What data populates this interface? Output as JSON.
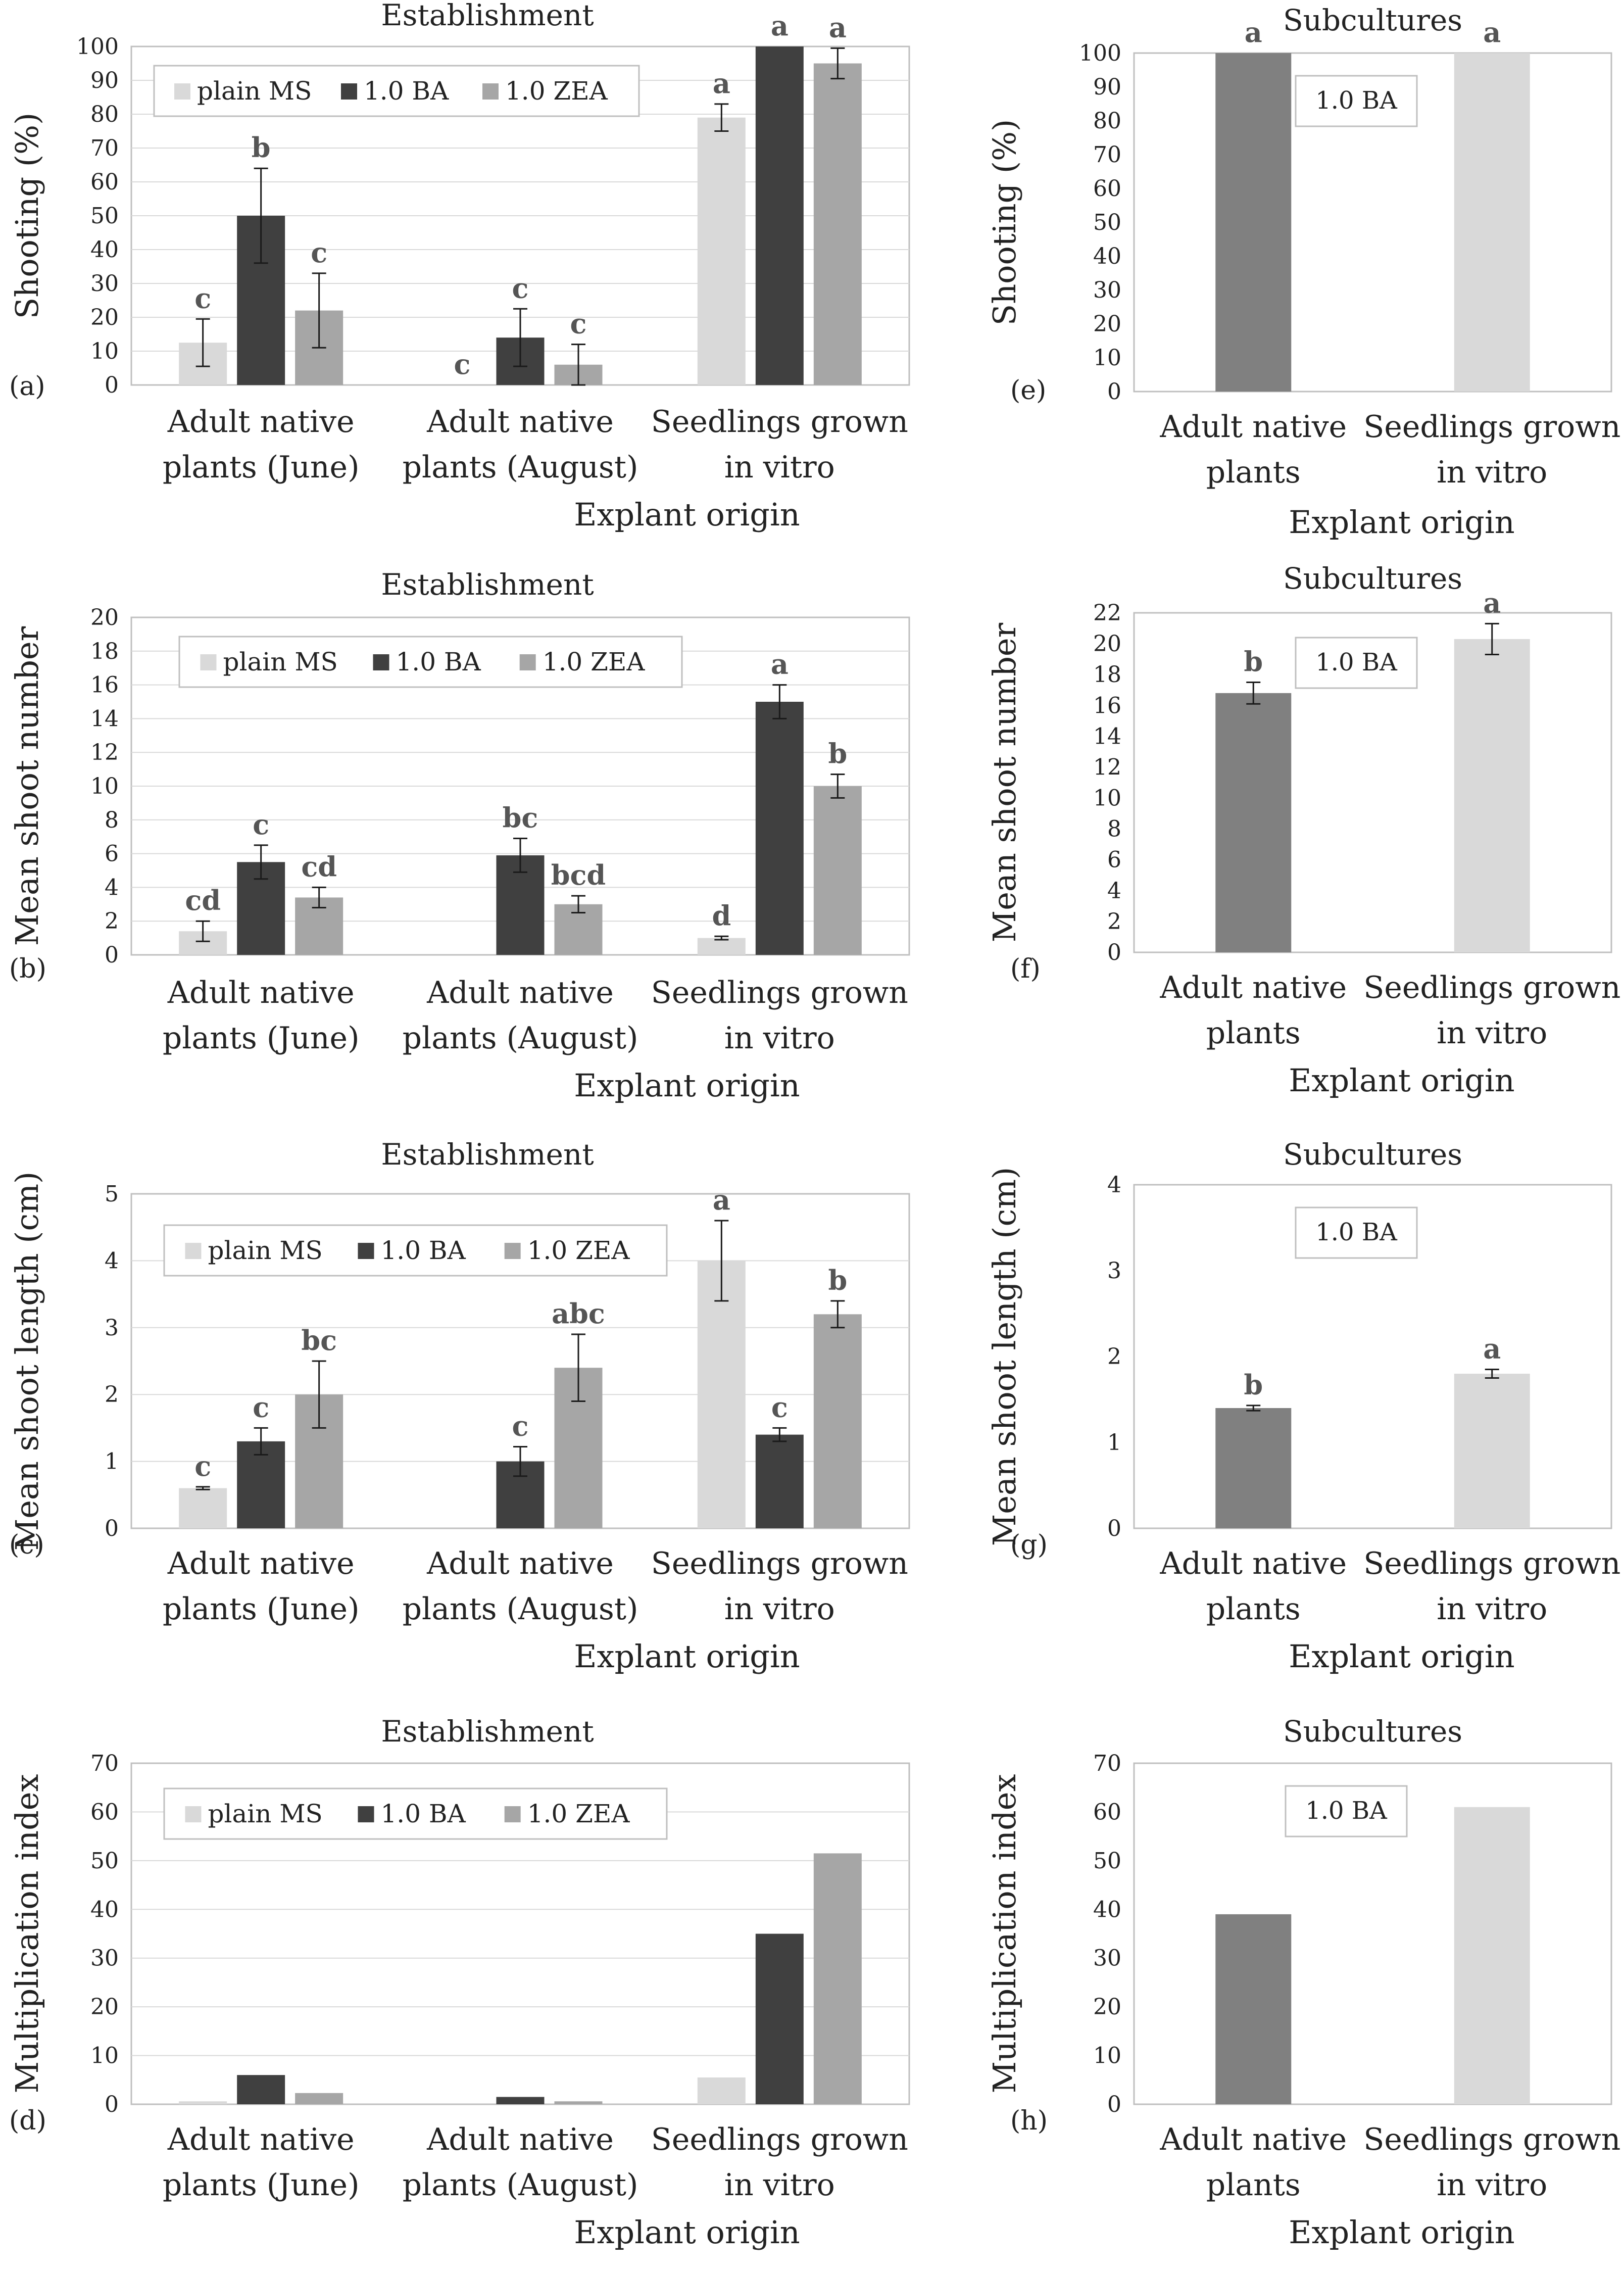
{
  "legend_labels": [
    "plain MS",
    "1.0 BA",
    "1.0 ZEA"
  ],
  "colors": {
    "plain_ms": "#d9d9d9",
    "ba": "#404040",
    "zea": "#a6a6a6",
    "sub_adult": "#808080",
    "sub_seed": "#d9d9d9",
    "axis": "#bfbfbf",
    "grid": "#d9d9d9",
    "error": "#1a1a1a"
  },
  "chart_data": [
    {
      "id": "a",
      "panel_label": "(a)",
      "type": "bar",
      "title": "Establishment",
      "xlabel": "Explant origin",
      "ylabel": "Shooting (%)",
      "ylim": [
        0,
        100
      ],
      "yticks": [
        0,
        10,
        20,
        30,
        40,
        50,
        60,
        70,
        80,
        90,
        100
      ],
      "grid": true,
      "categories": [
        [
          "Adult native",
          "plants (June)"
        ],
        [
          "Adult native",
          "plants (August)"
        ],
        [
          "Seedlings grown",
          "in vitro"
        ]
      ],
      "series": [
        {
          "name": "plain MS",
          "color_key": "plain_ms",
          "values": [
            12.5,
            0,
            79
          ],
          "errors": [
            7,
            0,
            4
          ],
          "letters": [
            "c",
            "c",
            "a"
          ]
        },
        {
          "name": "1.0 BA",
          "color_key": "ba",
          "values": [
            50,
            14,
            100
          ],
          "errors": [
            14,
            8.5,
            0
          ],
          "letters": [
            "b",
            "c",
            "a"
          ]
        },
        {
          "name": "1.0 ZEA",
          "color_key": "zea",
          "values": [
            22,
            6,
            95
          ],
          "errors": [
            11,
            6,
            4.5
          ],
          "letters": [
            "c",
            "c",
            "a"
          ]
        }
      ],
      "legend": true,
      "legend_position": "top-left",
      "box_label": ""
    },
    {
      "id": "b",
      "panel_label": "(b)",
      "type": "bar",
      "title": "Establishment",
      "xlabel": "Explant origin",
      "ylabel": "Mean shoot number",
      "ylim": [
        0,
        20
      ],
      "yticks": [
        0,
        2,
        4,
        6,
        8,
        10,
        12,
        14,
        16,
        18,
        20
      ],
      "grid": true,
      "categories": [
        [
          "Adult native",
          "plants (June)"
        ],
        [
          "Adult native",
          "plants (August)"
        ],
        [
          "Seedlings grown",
          "in vitro"
        ]
      ],
      "series": [
        {
          "name": "plain MS",
          "color_key": "plain_ms",
          "values": [
            1.4,
            0,
            1.0
          ],
          "errors": [
            0.6,
            0,
            0.1
          ],
          "letters": [
            "cd",
            "",
            "d"
          ]
        },
        {
          "name": "1.0 BA",
          "color_key": "ba",
          "values": [
            5.5,
            5.9,
            15.0
          ],
          "errors": [
            1.0,
            1.0,
            1.0
          ],
          "letters": [
            "c",
            "bc",
            "a"
          ]
        },
        {
          "name": "1.0 ZEA",
          "color_key": "zea",
          "values": [
            3.4,
            3.0,
            10.0
          ],
          "errors": [
            0.6,
            0.5,
            0.7
          ],
          "letters": [
            "cd",
            "bcd",
            "b"
          ]
        }
      ],
      "legend": true,
      "legend_position": "top-left",
      "box_label": ""
    },
    {
      "id": "c",
      "panel_label": "(c)",
      "type": "bar",
      "title": "Establishment",
      "xlabel": "Explant origin",
      "ylabel": "Mean shoot length (cm)",
      "ylim": [
        0,
        5
      ],
      "yticks": [
        0,
        1,
        2,
        3,
        4,
        5
      ],
      "grid": true,
      "categories": [
        [
          "Adult native",
          "plants (June)"
        ],
        [
          "Adult native",
          "plants (August)"
        ],
        [
          "Seedlings grown",
          "in vitro"
        ]
      ],
      "series": [
        {
          "name": "plain MS",
          "color_key": "plain_ms",
          "values": [
            0.6,
            0,
            4.0
          ],
          "errors": [
            0.02,
            0,
            0.6
          ],
          "letters": [
            "c",
            "",
            "a"
          ]
        },
        {
          "name": "1.0 BA",
          "color_key": "ba",
          "values": [
            1.3,
            1.0,
            1.4
          ],
          "errors": [
            0.2,
            0.22,
            0.1
          ],
          "letters": [
            "c",
            "c",
            "c"
          ]
        },
        {
          "name": "1.0 ZEA",
          "color_key": "zea",
          "values": [
            2.0,
            2.4,
            3.2
          ],
          "errors": [
            0.5,
            0.5,
            0.2
          ],
          "letters": [
            "bc",
            "abc",
            "b"
          ]
        }
      ],
      "legend": true,
      "legend_position": "top-left",
      "box_label": ""
    },
    {
      "id": "d",
      "panel_label": "(d)",
      "type": "bar",
      "title": "Establishment",
      "xlabel": "Explant origin",
      "ylabel": "Multiplication index",
      "ylim": [
        0,
        70
      ],
      "yticks": [
        0,
        10,
        20,
        30,
        40,
        50,
        60,
        70
      ],
      "grid": true,
      "categories": [
        [
          "Adult native",
          "plants (June)"
        ],
        [
          "Adult native",
          "plants (August)"
        ],
        [
          "Seedlings grown",
          "in vitro"
        ]
      ],
      "series": [
        {
          "name": "plain MS",
          "color_key": "plain_ms",
          "values": [
            0.6,
            0,
            5.5
          ],
          "errors": [
            0,
            0,
            0
          ],
          "letters": [
            "",
            "",
            ""
          ]
        },
        {
          "name": "1.0 BA",
          "color_key": "ba",
          "values": [
            6.0,
            1.5,
            35.0
          ],
          "errors": [
            0,
            0,
            0
          ],
          "letters": [
            "",
            "",
            ""
          ]
        },
        {
          "name": "1.0 ZEA",
          "color_key": "zea",
          "values": [
            2.3,
            0.6,
            51.5
          ],
          "errors": [
            0,
            0,
            0
          ],
          "letters": [
            "",
            "",
            ""
          ]
        }
      ],
      "legend": true,
      "legend_position": "top-left",
      "box_label": ""
    },
    {
      "id": "e",
      "panel_label": "(e)",
      "type": "bar",
      "title": "Subcultures",
      "xlabel": "Explant origin",
      "ylabel": "Shooting (%)",
      "ylim": [
        0,
        100
      ],
      "yticks": [
        0,
        10,
        20,
        30,
        40,
        50,
        60,
        70,
        80,
        90,
        100
      ],
      "grid": false,
      "categories": [
        [
          "Adult native",
          "plants"
        ],
        [
          "Seedlings grown",
          "in vitro"
        ]
      ],
      "series": [
        {
          "name": "1.0 BA",
          "values": [
            100,
            100
          ],
          "errors": [
            0,
            0
          ],
          "letters": [
            "a",
            "a"
          ],
          "color_keys": [
            "sub_adult",
            "sub_seed"
          ]
        }
      ],
      "legend": false,
      "box_label": "1.0 BA"
    },
    {
      "id": "f",
      "panel_label": "(f)",
      "type": "bar",
      "title": "Subcultures",
      "xlabel": "Explant origin",
      "ylabel": "Mean shoot number",
      "ylim": [
        0,
        22
      ],
      "yticks": [
        0,
        2,
        4,
        6,
        8,
        10,
        12,
        14,
        16,
        18,
        20,
        22
      ],
      "grid": false,
      "categories": [
        [
          "Adult native",
          "plants"
        ],
        [
          "Seedlings grown",
          "in vitro"
        ]
      ],
      "series": [
        {
          "name": "1.0 BA",
          "values": [
            16.8,
            20.3
          ],
          "errors": [
            0.7,
            1.0
          ],
          "letters": [
            "b",
            "a"
          ],
          "color_keys": [
            "sub_adult",
            "sub_seed"
          ]
        }
      ],
      "legend": false,
      "box_label": "1.0 BA"
    },
    {
      "id": "g",
      "panel_label": "(g)",
      "type": "bar",
      "title": "Subcultures",
      "xlabel": "Explant origin",
      "ylabel": "Mean shoot length (cm)",
      "ylim": [
        0,
        4
      ],
      "yticks": [
        0,
        1,
        2,
        3,
        4
      ],
      "grid": false,
      "categories": [
        [
          "Adult native",
          "plants"
        ],
        [
          "Seedlings grown",
          "in vitro"
        ]
      ],
      "series": [
        {
          "name": "1.0 BA",
          "values": [
            1.4,
            1.8
          ],
          "errors": [
            0.03,
            0.05
          ],
          "letters": [
            "b",
            "a"
          ],
          "color_keys": [
            "sub_adult",
            "sub_seed"
          ]
        }
      ],
      "legend": false,
      "box_label": "1.0 BA"
    },
    {
      "id": "h",
      "panel_label": "(h)",
      "type": "bar",
      "title": "Subcultures",
      "xlabel": "Explant origin",
      "ylabel": "Multiplication index",
      "ylim": [
        0,
        70
      ],
      "yticks": [
        0,
        10,
        20,
        30,
        40,
        50,
        60,
        70
      ],
      "grid": false,
      "categories": [
        [
          "Adult native",
          "plants"
        ],
        [
          "Seedlings grown",
          "in vitro"
        ]
      ],
      "series": [
        {
          "name": "1.0 BA",
          "values": [
            39,
            61
          ],
          "errors": [
            0,
            0
          ],
          "letters": [
            "",
            ""
          ],
          "color_keys": [
            "sub_adult",
            "sub_seed"
          ]
        }
      ],
      "legend": false,
      "box_label": "1.0 BA"
    }
  ]
}
